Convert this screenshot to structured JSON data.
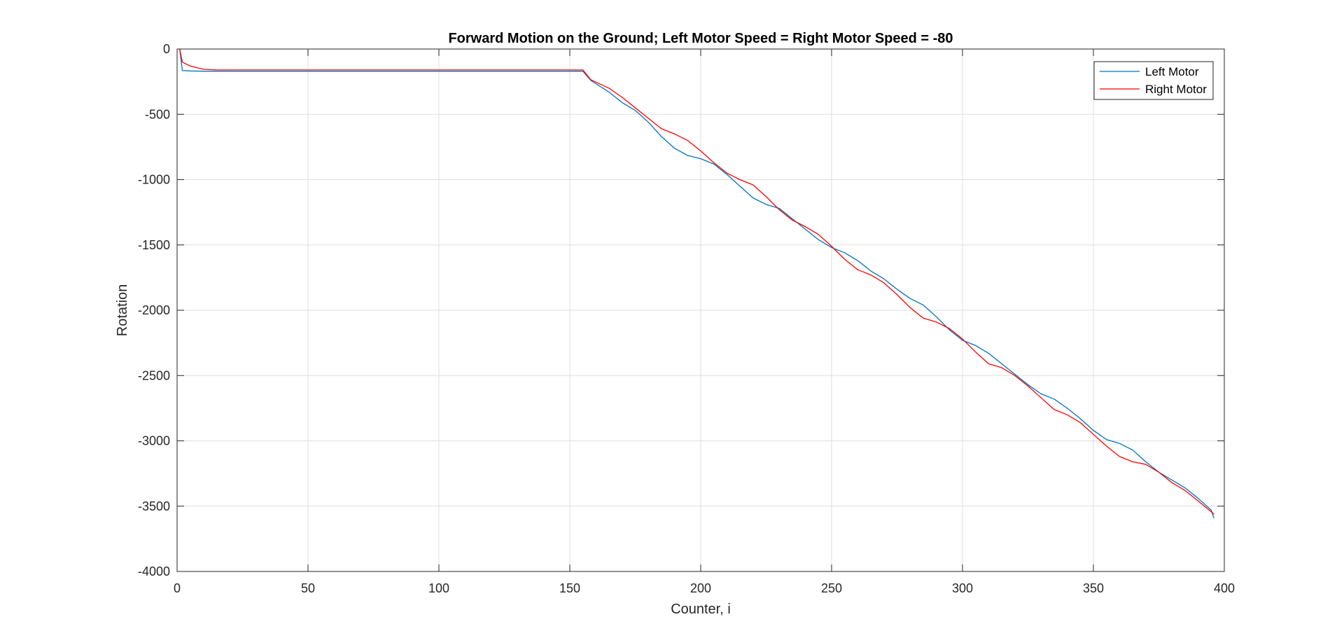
{
  "chart_data": {
    "type": "line",
    "title": "Forward Motion on the Ground; Left Motor Speed = Right Motor Speed = -80",
    "xlabel": "Counter, i",
    "ylabel": "Rotation",
    "xlim": [
      0,
      400
    ],
    "ylim": [
      -4000,
      0
    ],
    "xticks": [
      0,
      50,
      100,
      150,
      200,
      250,
      300,
      350,
      400
    ],
    "yticks": [
      0,
      -500,
      -1000,
      -1500,
      -2000,
      -2500,
      -3000,
      -3500,
      -4000
    ],
    "xtick_labels": [
      "0",
      "50",
      "100",
      "150",
      "200",
      "250",
      "300",
      "350",
      "400"
    ],
    "ytick_labels": [
      "0",
      "-500",
      "-1000",
      "-1500",
      "-2000",
      "-2500",
      "-3000",
      "-3500",
      "-4000"
    ],
    "grid": true,
    "legend_position": "top-right",
    "series": [
      {
        "name": "Left Motor",
        "color": "#0072BD",
        "points": [
          [
            1,
            0
          ],
          [
            2,
            -165
          ],
          [
            5,
            -168
          ],
          [
            10,
            -170
          ],
          [
            50,
            -170
          ],
          [
            100,
            -170
          ],
          [
            155,
            -170
          ],
          [
            158,
            -240
          ],
          [
            165,
            -330
          ],
          [
            170,
            -410
          ],
          [
            175,
            -470
          ],
          [
            180,
            -560
          ],
          [
            185,
            -670
          ],
          [
            190,
            -760
          ],
          [
            195,
            -815
          ],
          [
            200,
            -840
          ],
          [
            205,
            -880
          ],
          [
            210,
            -960
          ],
          [
            215,
            -1050
          ],
          [
            220,
            -1140
          ],
          [
            225,
            -1190
          ],
          [
            230,
            -1220
          ],
          [
            235,
            -1300
          ],
          [
            240,
            -1380
          ],
          [
            245,
            -1460
          ],
          [
            250,
            -1520
          ],
          [
            255,
            -1560
          ],
          [
            260,
            -1620
          ],
          [
            265,
            -1700
          ],
          [
            270,
            -1760
          ],
          [
            275,
            -1840
          ],
          [
            280,
            -1910
          ],
          [
            285,
            -1960
          ],
          [
            290,
            -2050
          ],
          [
            295,
            -2150
          ],
          [
            300,
            -2230
          ],
          [
            305,
            -2270
          ],
          [
            310,
            -2330
          ],
          [
            315,
            -2410
          ],
          [
            320,
            -2490
          ],
          [
            325,
            -2570
          ],
          [
            330,
            -2640
          ],
          [
            335,
            -2680
          ],
          [
            340,
            -2750
          ],
          [
            345,
            -2830
          ],
          [
            350,
            -2920
          ],
          [
            355,
            -2990
          ],
          [
            360,
            -3020
          ],
          [
            365,
            -3070
          ],
          [
            370,
            -3160
          ],
          [
            375,
            -3240
          ],
          [
            380,
            -3300
          ],
          [
            385,
            -3360
          ],
          [
            390,
            -3440
          ],
          [
            395,
            -3530
          ],
          [
            396,
            -3590
          ]
        ]
      },
      {
        "name": "Right Motor",
        "color": "#FF0000",
        "points": [
          [
            1,
            0
          ],
          [
            2,
            -100
          ],
          [
            5,
            -130
          ],
          [
            10,
            -155
          ],
          [
            15,
            -160
          ],
          [
            50,
            -160
          ],
          [
            100,
            -160
          ],
          [
            155,
            -160
          ],
          [
            158,
            -235
          ],
          [
            165,
            -300
          ],
          [
            170,
            -370
          ],
          [
            175,
            -450
          ],
          [
            180,
            -530
          ],
          [
            185,
            -610
          ],
          [
            190,
            -650
          ],
          [
            195,
            -700
          ],
          [
            200,
            -780
          ],
          [
            205,
            -870
          ],
          [
            210,
            -950
          ],
          [
            215,
            -1000
          ],
          [
            220,
            -1040
          ],
          [
            225,
            -1130
          ],
          [
            230,
            -1230
          ],
          [
            235,
            -1310
          ],
          [
            240,
            -1360
          ],
          [
            245,
            -1420
          ],
          [
            250,
            -1510
          ],
          [
            255,
            -1610
          ],
          [
            260,
            -1690
          ],
          [
            265,
            -1730
          ],
          [
            270,
            -1790
          ],
          [
            275,
            -1880
          ],
          [
            280,
            -1980
          ],
          [
            285,
            -2060
          ],
          [
            290,
            -2090
          ],
          [
            295,
            -2140
          ],
          [
            300,
            -2220
          ],
          [
            305,
            -2320
          ],
          [
            310,
            -2410
          ],
          [
            315,
            -2440
          ],
          [
            320,
            -2500
          ],
          [
            325,
            -2580
          ],
          [
            330,
            -2670
          ],
          [
            335,
            -2760
          ],
          [
            340,
            -2800
          ],
          [
            345,
            -2860
          ],
          [
            350,
            -2950
          ],
          [
            355,
            -3040
          ],
          [
            360,
            -3120
          ],
          [
            365,
            -3160
          ],
          [
            370,
            -3180
          ],
          [
            375,
            -3240
          ],
          [
            380,
            -3320
          ],
          [
            385,
            -3380
          ],
          [
            390,
            -3460
          ],
          [
            396,
            -3560
          ]
        ]
      }
    ]
  }
}
